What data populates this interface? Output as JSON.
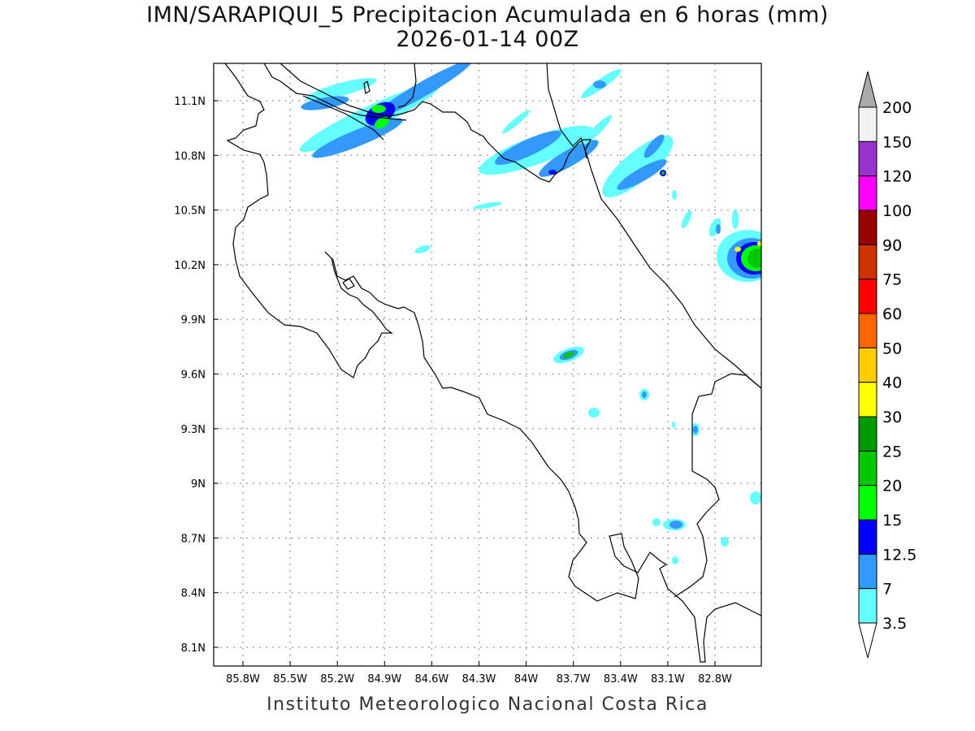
{
  "title": {
    "line1": "IMN/SARAPIQUI_5 Precipitacion Acumulada en 6 horas (mm)",
    "line2": "2026-01-14 00Z"
  },
  "footer": "Instituto Meteorologico Nacional Costa Rica",
  "axes": {
    "lon_labels": [
      "85.8W",
      "85.5W",
      "85.2W",
      "84.9W",
      "84.6W",
      "84.3W",
      "84W",
      "83.7W",
      "83.4W",
      "83.1W",
      "82.8W"
    ],
    "lat_labels": [
      "11.1N",
      "10.8N",
      "10.5N",
      "10.2N",
      "9.9N",
      "9.6N",
      "9.3N",
      "9N",
      "8.7N",
      "8.4N",
      "8.1N"
    ]
  },
  "colorbar": {
    "unit": "mm",
    "labels": [
      "200",
      "150",
      "120",
      "100",
      "90",
      "75",
      "60",
      "50",
      "40",
      "30",
      "25",
      "20",
      "15",
      "12.5",
      "7",
      "3.5"
    ],
    "colors": [
      "#f2f2f2",
      "#9933cc",
      "#ff00ff",
      "#990000",
      "#cc3300",
      "#ff0000",
      "#ff6600",
      "#ffcc00",
      "#ffff00",
      "#009900",
      "#00c800",
      "#00ff00",
      "#0000ff",
      "#3399ff",
      "#66ffff"
    ],
    "over_color": "#aaaaaa",
    "under_color": "#ffffff"
  }
}
